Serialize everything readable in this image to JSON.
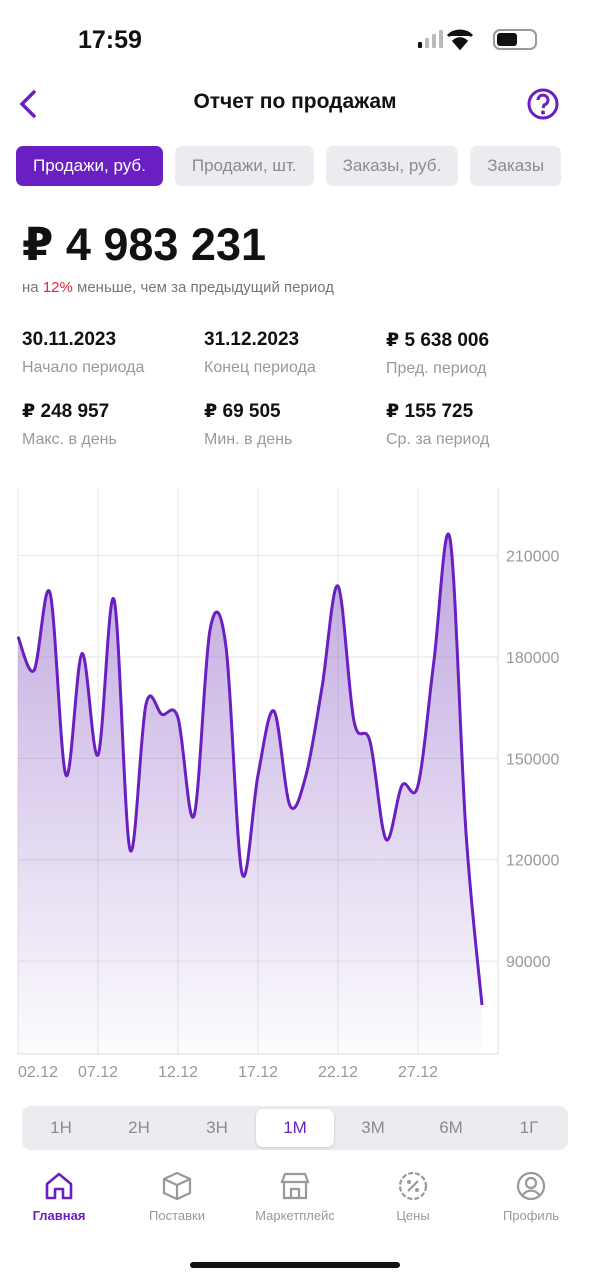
{
  "status": {
    "time": "17:59"
  },
  "header": {
    "title": "Отчет по продажам"
  },
  "tabs": [
    "Продажи, руб.",
    "Продажи, шт.",
    "Заказы, руб.",
    "Заказы"
  ],
  "summary": {
    "total": "₽ 4 983 231",
    "compare_prefix": "на",
    "compare_highlight": "12%",
    "compare_suffix": "меньше, чем за предыдущий период"
  },
  "stats": [
    {
      "value": "30.11.2023",
      "label": "Начало периода"
    },
    {
      "value": "31.12.2023",
      "label": "Конец периода"
    },
    {
      "value": "₽  5 638 006",
      "label": "Пред. период"
    },
    {
      "value": "₽ 248 957",
      "label": "Макс. в день"
    },
    {
      "value": "₽ 69 505",
      "label": "Мин. в день"
    },
    {
      "value": "₽ 155 725",
      "label": "Ср. за период"
    }
  ],
  "chart_data": {
    "type": "line",
    "x": [
      0,
      1,
      2,
      3,
      4,
      5,
      6,
      7,
      8,
      9,
      10,
      11,
      12,
      13,
      14,
      15,
      16,
      17,
      18,
      19,
      20,
      21,
      22,
      23,
      24,
      25,
      26,
      27,
      28,
      29
    ],
    "series": [
      {
        "color": "#6a1fc2",
        "values": [
          186000,
          176000,
          199000,
          145000,
          181000,
          151000,
          197000,
          123000,
          166000,
          163000,
          162000,
          133000,
          188000,
          183000,
          116000,
          145000,
          164000,
          136000,
          145000,
          171000,
          201000,
          161000,
          155000,
          126000,
          142000,
          142000,
          179000,
          215000,
          128000,
          77000
        ]
      }
    ],
    "xlim": [
      0,
      30
    ],
    "xticks": [
      {
        "value": 0,
        "label": "02.12"
      },
      {
        "value": 5,
        "label": "07.12"
      },
      {
        "value": 10,
        "label": "12.12"
      },
      {
        "value": 15,
        "label": "17.12"
      },
      {
        "value": 20,
        "label": "22.12"
      },
      {
        "value": 25,
        "label": "27.12"
      }
    ],
    "ylim": [
      62500,
      230000
    ],
    "yticks": [
      90000,
      120000,
      150000,
      180000,
      210000
    ],
    "grid": true
  },
  "ranges": {
    "options": [
      "1Н",
      "2Н",
      "3Н",
      "1М",
      "3М",
      "6М",
      "1Г"
    ],
    "selected": 3
  },
  "nav": {
    "items": [
      "Главная",
      "Поставки",
      "Маркетплейс",
      "Цены",
      "Профиль"
    ],
    "active": 0
  }
}
